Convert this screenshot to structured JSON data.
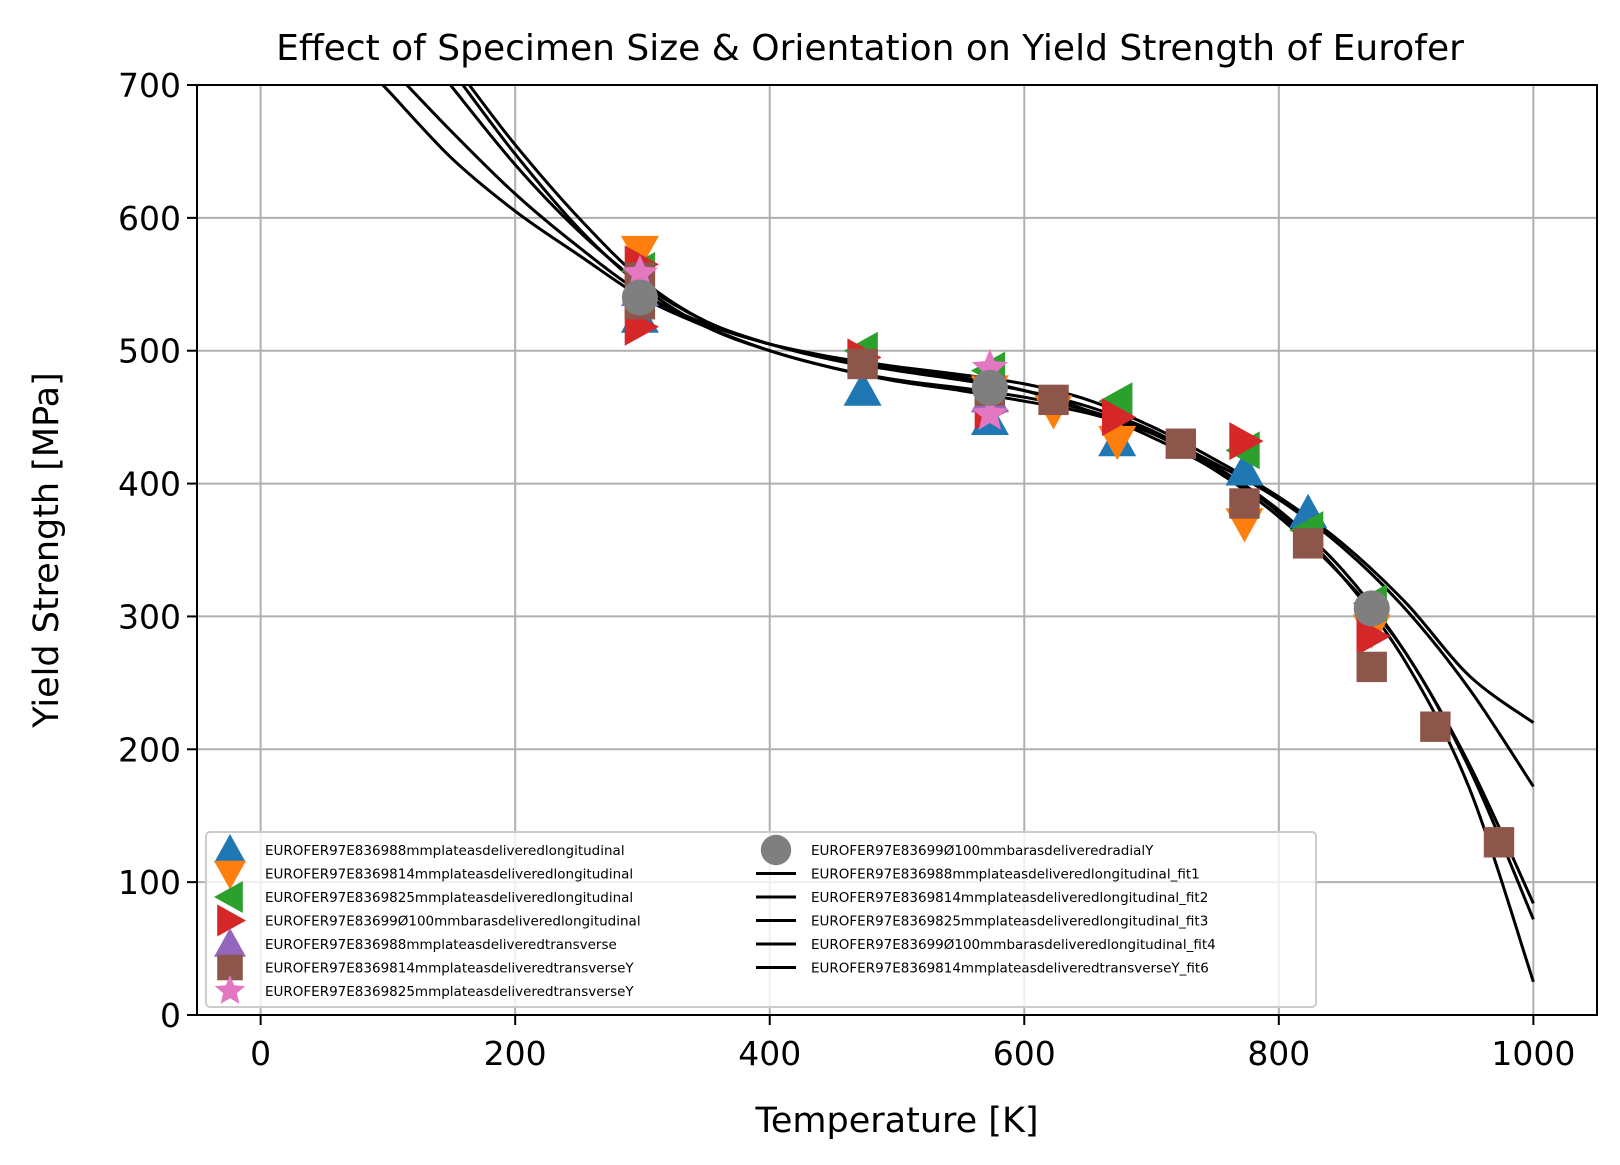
{
  "chart_data": {
    "type": "scatter",
    "title": "Effect of Specimen Size & Orientation on Yield Strength of Eurofer",
    "xlabel": "Temperature [K]",
    "ylabel": "Yield Strength [MPa]",
    "xlim": [
      -50,
      1050
    ],
    "ylim": [
      0,
      700
    ],
    "xticks": [
      0,
      200,
      400,
      600,
      800,
      1000
    ],
    "yticks": [
      0,
      100,
      200,
      300,
      400,
      500,
      600,
      700
    ],
    "grid": true,
    "legend_position": "lower-left",
    "series": [
      {
        "name": "EUROFER97E836988mmplateasdeliveredlongitudinal",
        "marker": "triangle-up",
        "color": "#1f77b4",
        "points": [
          [
            298,
            525
          ],
          [
            473,
            470
          ],
          [
            573,
            448
          ],
          [
            673,
            432
          ],
          [
            773,
            410
          ],
          [
            823,
            378
          ]
        ]
      },
      {
        "name": "EUROFER97E8369814mmplateasdeliveredlongitudinal",
        "marker": "triangle-down",
        "color": "#ff7f0e",
        "points": [
          [
            298,
            575
          ],
          [
            573,
            470
          ],
          [
            623,
            455
          ],
          [
            673,
            432
          ],
          [
            773,
            370
          ],
          [
            873,
            290
          ]
        ]
      },
      {
        "name": "EUROFER97E8369825mmplateasdeliveredlongitudinal",
        "marker": "triangle-left",
        "color": "#2ca02c",
        "points": [
          [
            298,
            560
          ],
          [
            473,
            500
          ],
          [
            573,
            485
          ],
          [
            673,
            462
          ],
          [
            773,
            425
          ],
          [
            823,
            365
          ],
          [
            873,
            310
          ]
        ]
      },
      {
        "name": "EUROFER97E83699Ø100mmbarasdeliveredlongitudinal",
        "marker": "triangle-right",
        "color": "#d62728",
        "points": [
          [
            298,
            518
          ],
          [
            298,
            565
          ],
          [
            473,
            495
          ],
          [
            573,
            455
          ],
          [
            673,
            450
          ],
          [
            773,
            432
          ],
          [
            873,
            285
          ]
        ]
      },
      {
        "name": "EUROFER97E836988mmplateasdeliveredtransverse",
        "marker": "triangle-up",
        "color": "#9467bd",
        "points": [
          [
            298,
            545
          ],
          [
            573,
            465
          ]
        ]
      },
      {
        "name": "EUROFER97E8369814mmplateasdeliveredtransverseY",
        "marker": "square",
        "color": "#8c564b",
        "points": [
          [
            298,
            555
          ],
          [
            298,
            535
          ],
          [
            473,
            490
          ],
          [
            573,
            470
          ],
          [
            623,
            463
          ],
          [
            723,
            430
          ],
          [
            773,
            385
          ],
          [
            823,
            355
          ],
          [
            873,
            262
          ],
          [
            923,
            217
          ],
          [
            973,
            130
          ]
        ]
      },
      {
        "name": "EUROFER97E8369825mmplateasdeliveredtransverseY",
        "marker": "star",
        "color": "#e377c2",
        "points": [
          [
            298,
            558
          ],
          [
            573,
            487
          ],
          [
            573,
            452
          ]
        ]
      },
      {
        "name": "EUROFER97E83699Ø100mmbarasdeliveredradialY",
        "marker": "circle",
        "color": "#7f7f7f",
        "points": [
          [
            298,
            540
          ],
          [
            573,
            472
          ],
          [
            873,
            306
          ]
        ]
      }
    ],
    "fits": [
      {
        "name": "EUROFER97E836988mmplateasdeliveredlongitudinal_fit1",
        "color": "#000000",
        "points": [
          [
            90,
            705
          ],
          [
            100,
            696
          ],
          [
            150,
            645
          ],
          [
            200,
            605
          ],
          [
            250,
            572
          ],
          [
            300,
            540
          ],
          [
            350,
            518
          ],
          [
            400,
            500
          ],
          [
            450,
            487
          ],
          [
            500,
            477
          ],
          [
            550,
            470
          ],
          [
            600,
            462
          ],
          [
            650,
            453
          ],
          [
            700,
            438
          ],
          [
            750,
            415
          ],
          [
            800,
            388
          ],
          [
            850,
            352
          ],
          [
            900,
            305
          ],
          [
            950,
            245
          ],
          [
            1000,
            172
          ]
        ]
      },
      {
        "name": "EUROFER97E8369814mmplateasdeliveredlongitudinal_fit2",
        "color": "#000000",
        "points": [
          [
            110,
            705
          ],
          [
            150,
            665
          ],
          [
            200,
            618
          ],
          [
            250,
            578
          ],
          [
            300,
            543
          ],
          [
            350,
            520
          ],
          [
            400,
            505
          ],
          [
            450,
            495
          ],
          [
            500,
            487
          ],
          [
            550,
            480
          ],
          [
            600,
            470
          ],
          [
            650,
            455
          ],
          [
            700,
            435
          ],
          [
            750,
            410
          ],
          [
            800,
            375
          ],
          [
            850,
            330
          ],
          [
            900,
            272
          ],
          [
            950,
            185
          ],
          [
            1000,
            72
          ]
        ]
      },
      {
        "name": "EUROFER97E8369825mmplateasdeliveredlongitudinal_fit3",
        "color": "#000000",
        "points": [
          [
            145,
            705
          ],
          [
            200,
            640
          ],
          [
            250,
            590
          ],
          [
            300,
            550
          ],
          [
            350,
            522
          ],
          [
            400,
            505
          ],
          [
            450,
            493
          ],
          [
            500,
            485
          ],
          [
            550,
            478
          ],
          [
            600,
            470
          ],
          [
            650,
            458
          ],
          [
            700,
            440
          ],
          [
            750,
            413
          ],
          [
            800,
            380
          ],
          [
            850,
            335
          ],
          [
            900,
            272
          ],
          [
            950,
            188
          ],
          [
            1000,
            84
          ]
        ]
      },
      {
        "name": "EUROFER97E83699Ø100mmbarasdeliveredlongitudinal_fit4",
        "color": "#000000",
        "points": [
          [
            155,
            705
          ],
          [
            200,
            648
          ],
          [
            250,
            592
          ],
          [
            300,
            548
          ],
          [
            350,
            518
          ],
          [
            400,
            500
          ],
          [
            450,
            487
          ],
          [
            500,
            478
          ],
          [
            550,
            472
          ],
          [
            600,
            465
          ],
          [
            650,
            455
          ],
          [
            700,
            438
          ],
          [
            750,
            412
          ],
          [
            800,
            378
          ],
          [
            850,
            330
          ],
          [
            900,
            265
          ],
          [
            950,
            170
          ],
          [
            1000,
            25
          ]
        ]
      },
      {
        "name": "EUROFER97E8369814mmplateasdeliveredtransverseY_fit6",
        "color": "#000000",
        "points": [
          [
            160,
            705
          ],
          [
            200,
            655
          ],
          [
            250,
            600
          ],
          [
            300,
            553
          ],
          [
            350,
            522
          ],
          [
            400,
            505
          ],
          [
            450,
            495
          ],
          [
            500,
            488
          ],
          [
            550,
            482
          ],
          [
            600,
            475
          ],
          [
            650,
            463
          ],
          [
            700,
            443
          ],
          [
            750,
            418
          ],
          [
            800,
            390
          ],
          [
            850,
            355
          ],
          [
            900,
            310
          ],
          [
            950,
            255
          ],
          [
            1000,
            220
          ]
        ]
      }
    ]
  }
}
